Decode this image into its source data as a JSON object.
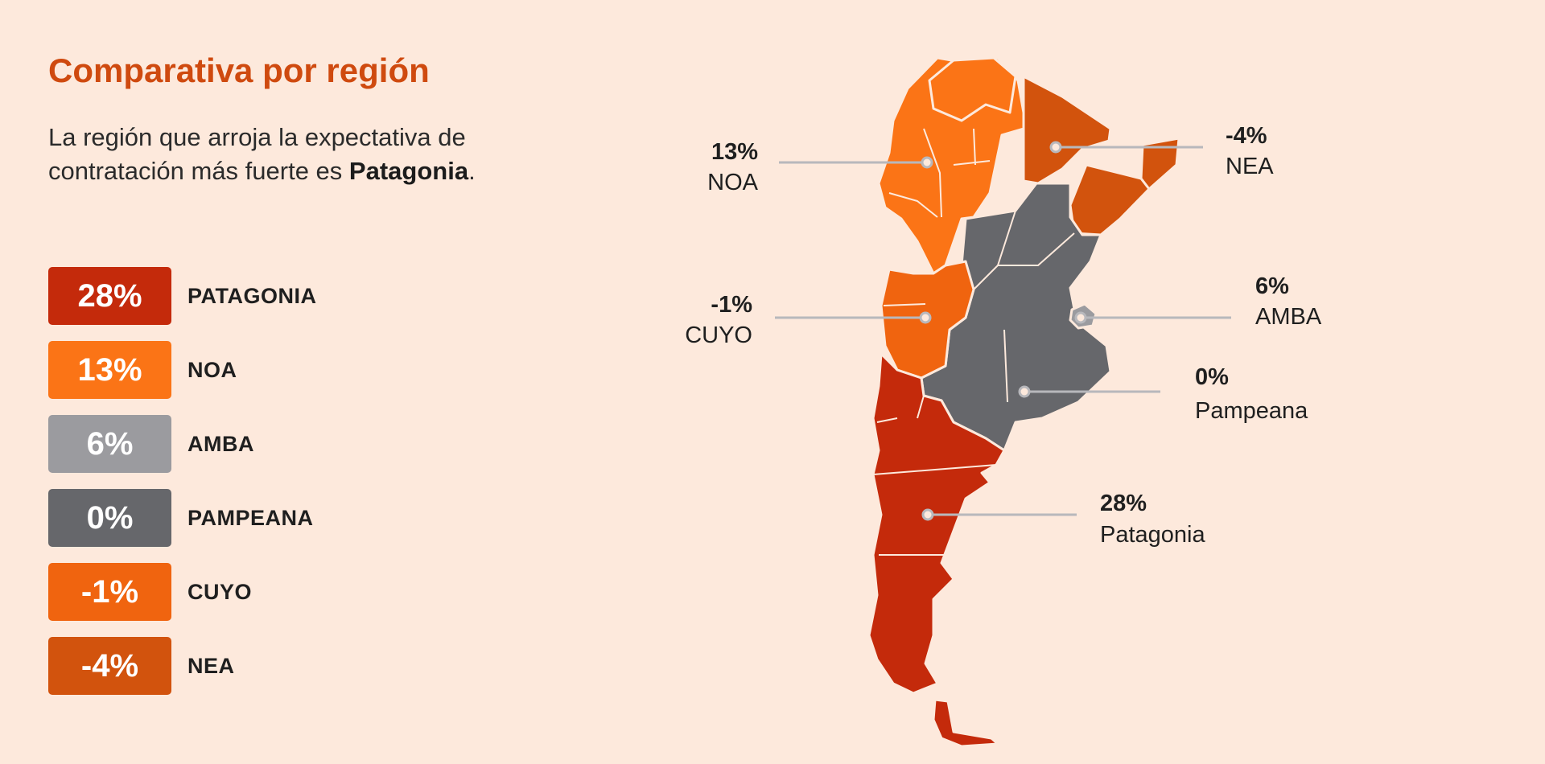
{
  "title": "Comparativa por región",
  "intro": {
    "text": "La región que arroja la expectativa de contratación más fuerte es ",
    "highlight": "Patagonia",
    "end": "."
  },
  "legend": [
    {
      "value": "28%",
      "label": "PATAGONIA",
      "color": "#c42a0b"
    },
    {
      "value": "13%",
      "label": "NOA",
      "color": "#fb7416"
    },
    {
      "value": "6%",
      "label": "AMBA",
      "color": "#9b9b9f"
    },
    {
      "value": "0%",
      "label": "PAMPEANA",
      "color": "#66676b"
    },
    {
      "value": "-1%",
      "label": "CUYO",
      "color": "#f0640f"
    },
    {
      "value": "-4%",
      "label": "NEA",
      "color": "#d2530d"
    }
  ],
  "map": {
    "callouts": [
      {
        "value": "13%",
        "name": "NOA"
      },
      {
        "value": "-4%",
        "name": "NEA"
      },
      {
        "value": "-1%",
        "name": "CUYO"
      },
      {
        "value": "6%",
        "name": "AMBA"
      },
      {
        "value": "0%",
        "name": "Pampeana"
      },
      {
        "value": "28%",
        "name": "Patagonia"
      }
    ]
  }
}
